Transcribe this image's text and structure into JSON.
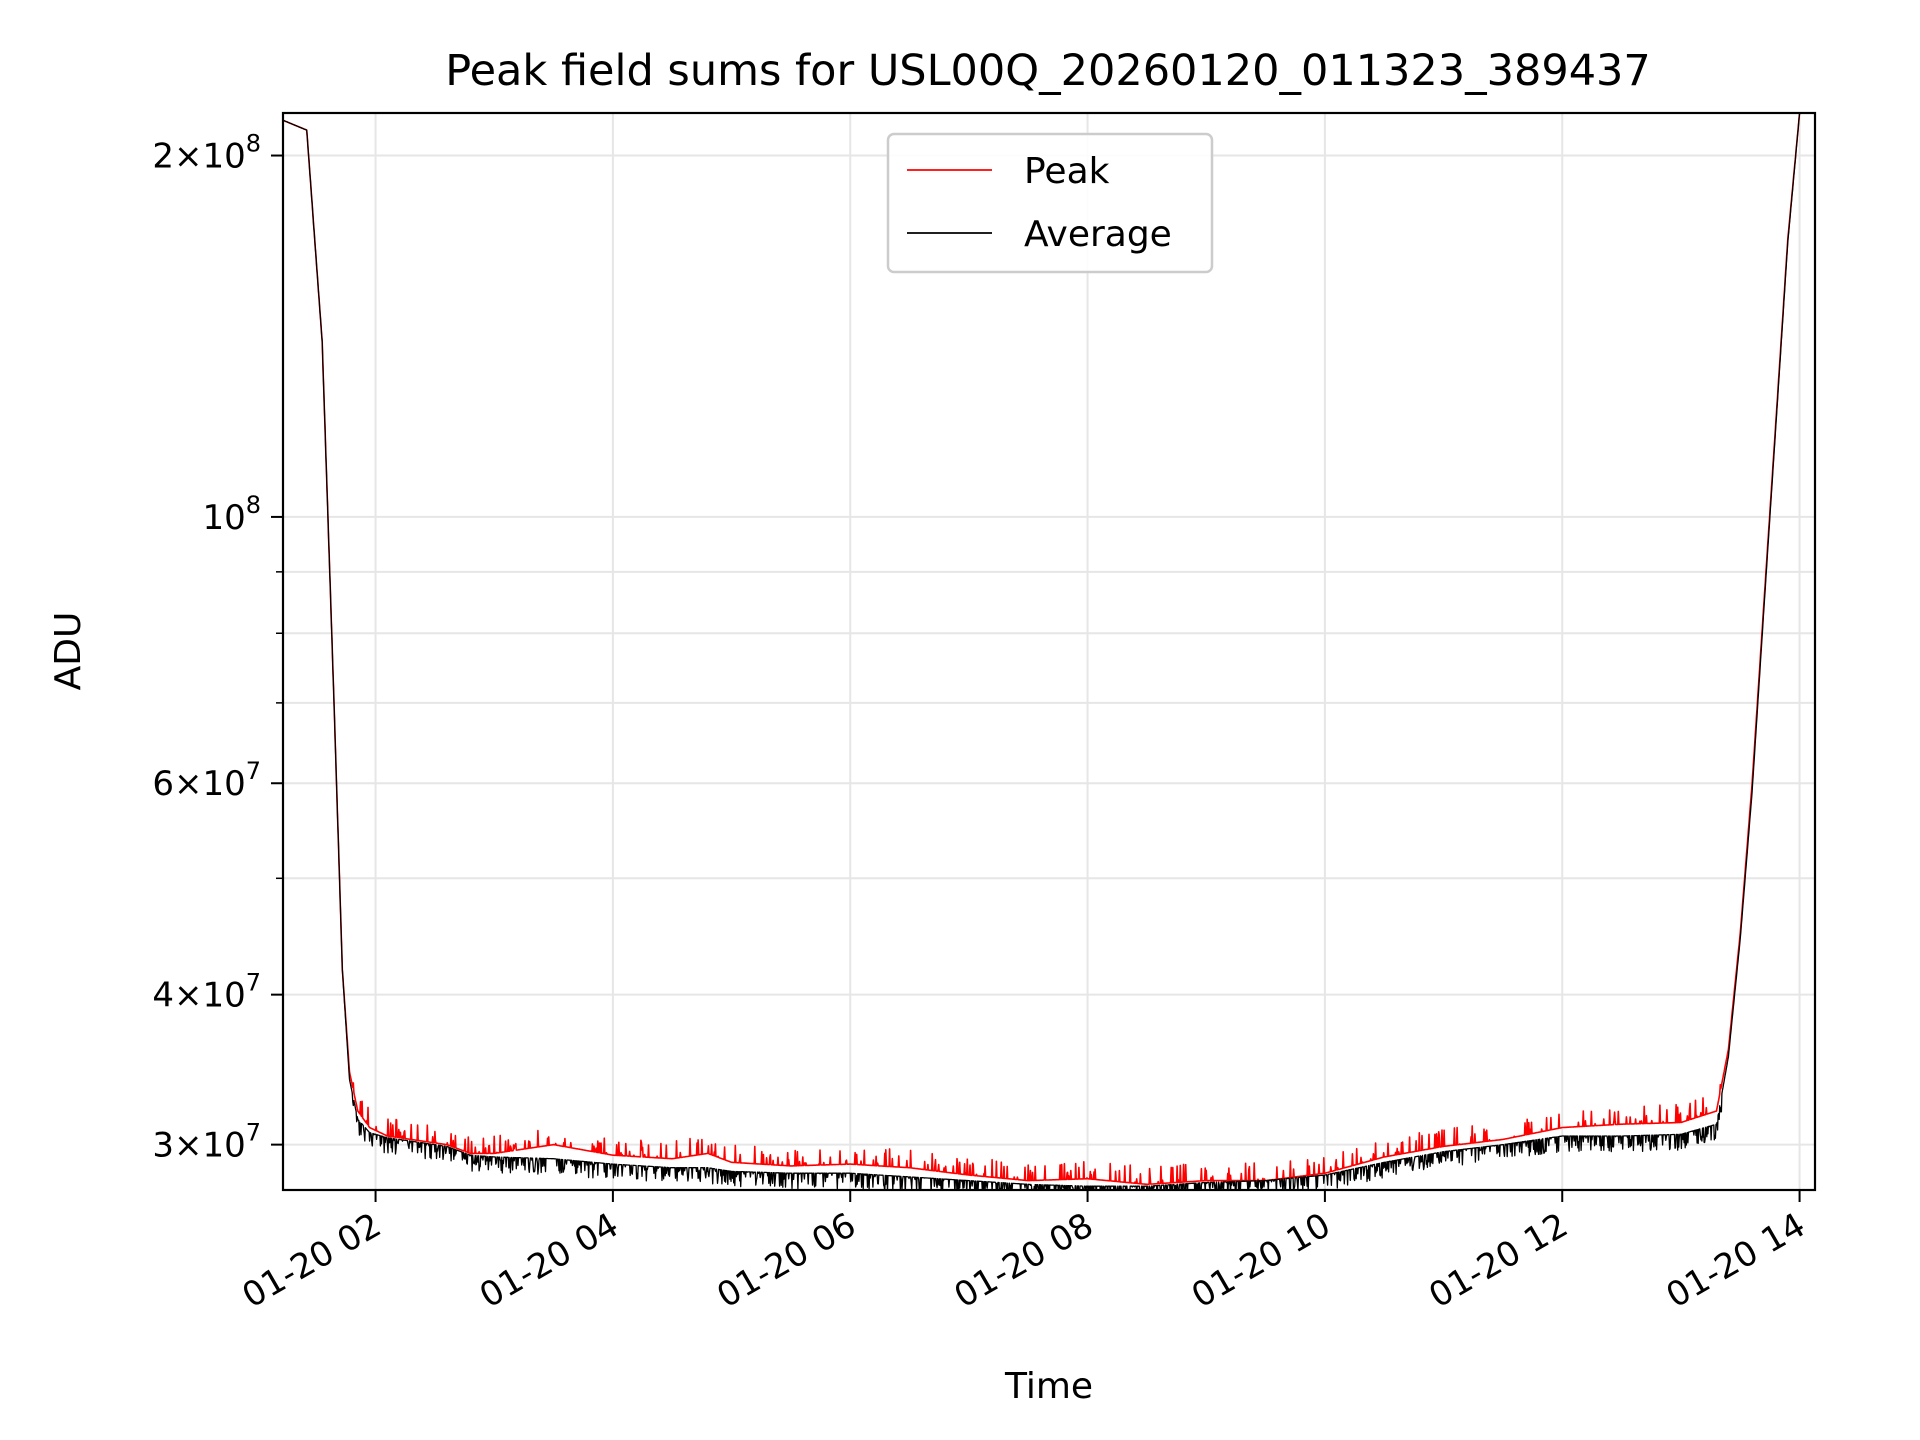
{
  "chart_data": {
    "type": "line",
    "title": "Peak field sums for USL00Q_20260120_011323_389437",
    "xlabel": "Time",
    "ylabel": "ADU",
    "x_unit": "hours since 2026-01-20 00:00",
    "xlim": [
      1.22,
      14.13
    ],
    "ylim": [
      27500000,
      217000000
    ],
    "yscale": "log",
    "grid": true,
    "legend_position": "upper center",
    "x_ticks": [
      {
        "value": 2,
        "label": "01-20 02"
      },
      {
        "value": 4,
        "label": "01-20 04"
      },
      {
        "value": 6,
        "label": "01-20 06"
      },
      {
        "value": 8,
        "label": "01-20 08"
      },
      {
        "value": 10,
        "label": "01-20 10"
      },
      {
        "value": 12,
        "label": "01-20 12"
      },
      {
        "value": 14,
        "label": "01-20 14"
      }
    ],
    "y_major_ticks": [
      {
        "value": 30000000,
        "mant": "3",
        "exp": "7"
      },
      {
        "value": 40000000,
        "mant": "4",
        "exp": "7"
      },
      {
        "value": 60000000,
        "mant": "6",
        "exp": "7"
      },
      {
        "value": 100000000,
        "mant": "",
        "exp": "8"
      },
      {
        "value": 200000000,
        "mant": "2",
        "exp": "8"
      }
    ],
    "y_minor_ticks": [
      50000000,
      70000000,
      80000000,
      90000000
    ],
    "series": [
      {
        "name": "Peak",
        "color": "#ff0000",
        "x": [
          1.22,
          1.42,
          1.55,
          1.65,
          1.72,
          1.78,
          1.85,
          1.95,
          2.1,
          2.3,
          2.6,
          2.8,
          3.0,
          3.5,
          4.0,
          4.5,
          4.8,
          5.0,
          5.5,
          6.0,
          6.5,
          7.0,
          7.5,
          8.0,
          8.5,
          9.0,
          9.5,
          10.0,
          10.5,
          11.0,
          11.5,
          12.0,
          12.5,
          13.0,
          13.3,
          13.4,
          13.5,
          13.6,
          13.7,
          13.8,
          13.9,
          14.0
        ],
        "y": [
          214000000,
          210000000,
          140000000,
          70000000,
          42000000,
          34500000,
          32000000,
          31000000,
          30500000,
          30300000,
          30000000,
          29500000,
          29500000,
          30000000,
          29400000,
          29200000,
          29500000,
          29000000,
          28800000,
          28900000,
          28700000,
          28300000,
          28000000,
          28100000,
          27800000,
          28000000,
          28000000,
          28400000,
          29300000,
          29900000,
          30300000,
          31000000,
          31200000,
          31300000,
          32000000,
          36000000,
          45000000,
          60000000,
          85000000,
          120000000,
          170000000,
          217000000
        ]
      },
      {
        "name": "Average",
        "color": "#000000",
        "x": [
          1.22,
          1.42,
          1.55,
          1.65,
          1.72,
          1.78,
          1.85,
          1.95,
          2.1,
          2.3,
          2.6,
          2.8,
          3.0,
          3.5,
          4.0,
          4.5,
          4.8,
          5.0,
          5.5,
          6.0,
          6.5,
          7.0,
          7.5,
          8.0,
          8.5,
          9.0,
          9.5,
          10.0,
          10.5,
          11.0,
          11.5,
          12.0,
          12.5,
          13.0,
          13.3,
          13.4,
          13.5,
          13.6,
          13.7,
          13.8,
          13.9,
          14.0
        ],
        "y": [
          214000000,
          210000000,
          140000000,
          70000000,
          42000000,
          34000000,
          31500000,
          30700000,
          30400000,
          30200000,
          29900000,
          29400000,
          29300000,
          29200000,
          28900000,
          28700000,
          28700000,
          28500000,
          28400000,
          28400000,
          28200000,
          28000000,
          27800000,
          27700000,
          27700000,
          27900000,
          28000000,
          28300000,
          29000000,
          29600000,
          30000000,
          30500000,
          30500000,
          30600000,
          31200000,
          35500000,
          44500000,
          59000000,
          84000000,
          119000000,
          169000000,
          217000000
        ]
      }
    ]
  }
}
